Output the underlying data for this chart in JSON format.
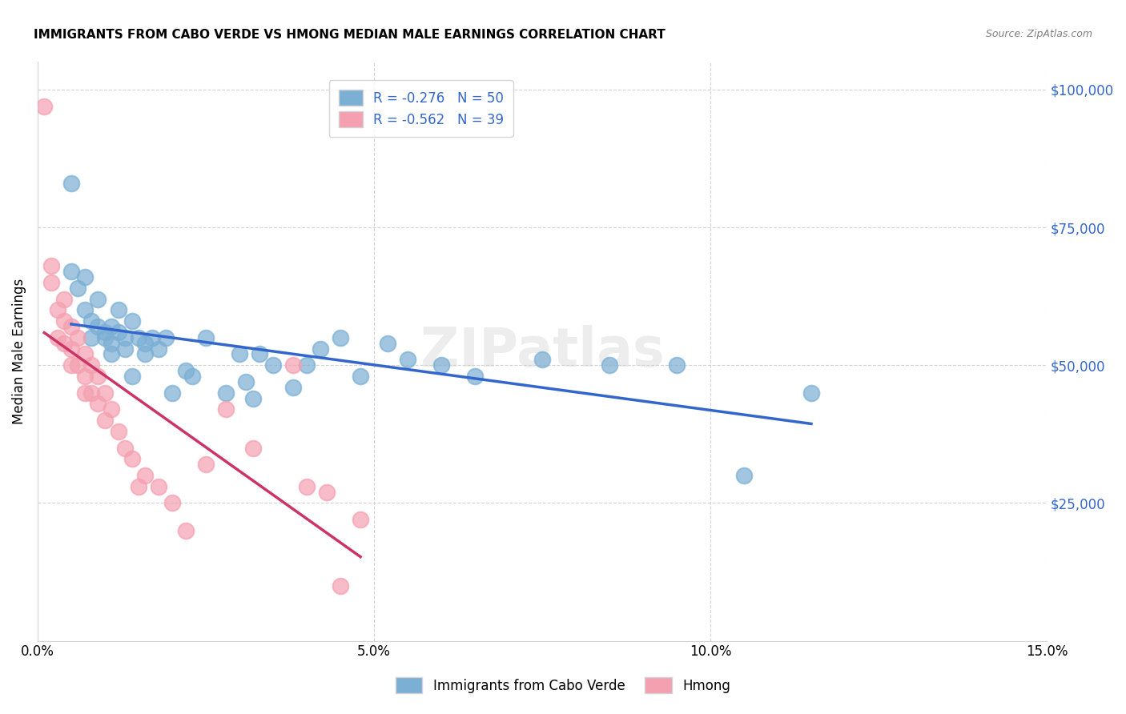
{
  "title": "IMMIGRANTS FROM CABO VERDE VS HMONG MEDIAN MALE EARNINGS CORRELATION CHART",
  "source": "Source: ZipAtlas.com",
  "xlabel": "",
  "ylabel": "Median Male Earnings",
  "xlim": [
    0.0,
    0.15
  ],
  "ylim": [
    0,
    105000
  ],
  "xticks": [
    0.0,
    0.05,
    0.1,
    0.15
  ],
  "xticklabels": [
    "0.0%",
    "5.0%",
    "10.0%",
    "15.0%"
  ],
  "yticks_right": [
    0,
    25000,
    50000,
    75000,
    100000
  ],
  "yticklabels_right": [
    "",
    "$25,000",
    "$50,000",
    "$75,000",
    "$100,000"
  ],
  "watermark": "ZIPatlas",
  "cabo_verde_R": "-0.276",
  "cabo_verde_N": "50",
  "hmong_R": "-0.562",
  "hmong_N": "39",
  "cabo_verde_color": "#7bafd4",
  "cabo_verde_line_color": "#3366cc",
  "hmong_color": "#f4a0b0",
  "hmong_line_color": "#cc3366",
  "cabo_verde_scatter_x": [
    0.005,
    0.005,
    0.006,
    0.007,
    0.007,
    0.008,
    0.008,
    0.009,
    0.009,
    0.01,
    0.01,
    0.011,
    0.011,
    0.011,
    0.012,
    0.012,
    0.013,
    0.013,
    0.014,
    0.014,
    0.015,
    0.016,
    0.016,
    0.017,
    0.018,
    0.019,
    0.02,
    0.022,
    0.023,
    0.025,
    0.028,
    0.03,
    0.031,
    0.032,
    0.033,
    0.035,
    0.038,
    0.04,
    0.042,
    0.045,
    0.048,
    0.052,
    0.055,
    0.06,
    0.065,
    0.075,
    0.085,
    0.095,
    0.105,
    0.115
  ],
  "cabo_verde_scatter_y": [
    83000,
    67000,
    64000,
    66000,
    60000,
    58000,
    55000,
    62000,
    57000,
    56000,
    55000,
    57000,
    54000,
    52000,
    60000,
    56000,
    55000,
    53000,
    58000,
    48000,
    55000,
    54000,
    52000,
    55000,
    53000,
    55000,
    45000,
    49000,
    48000,
    55000,
    45000,
    52000,
    47000,
    44000,
    52000,
    50000,
    46000,
    50000,
    53000,
    55000,
    48000,
    54000,
    51000,
    50000,
    48000,
    51000,
    50000,
    50000,
    30000,
    45000
  ],
  "hmong_scatter_x": [
    0.001,
    0.002,
    0.002,
    0.003,
    0.003,
    0.004,
    0.004,
    0.004,
    0.005,
    0.005,
    0.005,
    0.006,
    0.006,
    0.007,
    0.007,
    0.007,
    0.008,
    0.008,
    0.009,
    0.009,
    0.01,
    0.01,
    0.011,
    0.012,
    0.013,
    0.014,
    0.015,
    0.016,
    0.018,
    0.02,
    0.022,
    0.025,
    0.028,
    0.032,
    0.038,
    0.04,
    0.043,
    0.045,
    0.048
  ],
  "hmong_scatter_y": [
    97000,
    68000,
    65000,
    60000,
    55000,
    62000,
    58000,
    54000,
    57000,
    53000,
    50000,
    55000,
    50000,
    52000,
    48000,
    45000,
    50000,
    45000,
    48000,
    43000,
    45000,
    40000,
    42000,
    38000,
    35000,
    33000,
    28000,
    30000,
    28000,
    25000,
    20000,
    32000,
    42000,
    35000,
    50000,
    28000,
    27000,
    10000,
    22000
  ]
}
